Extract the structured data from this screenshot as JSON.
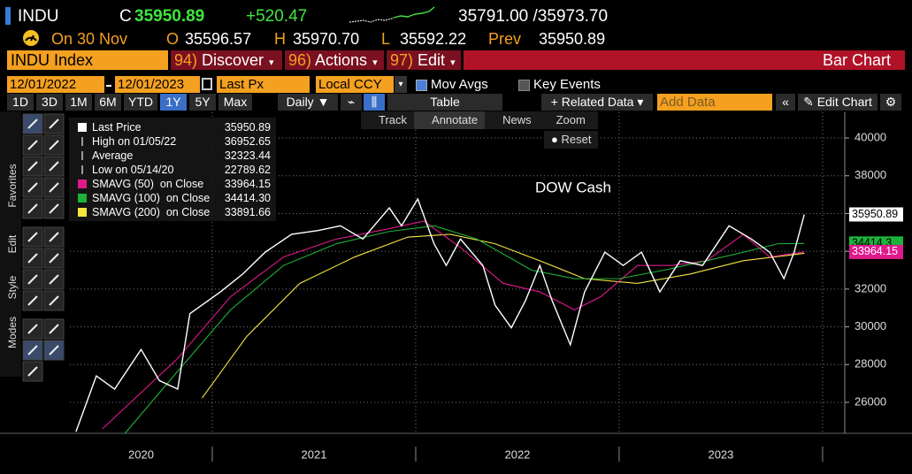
{
  "header": {
    "ticker": "INDU",
    "close_label": "C",
    "close": "35950.89",
    "change": "+520.47",
    "bid_ask": "35791.00 /35973.70",
    "date": "On 30 Nov",
    "open_label": "O",
    "open": "35596.57",
    "high_label": "H",
    "high": "35970.70",
    "low_label": "L",
    "low": "35592.22",
    "prev_label": "Prev",
    "prev": "35950.89"
  },
  "menu": {
    "security": "INDU Index",
    "items": [
      {
        "key": "94)",
        "label": "Discover"
      },
      {
        "key": "96)",
        "label": "Actions"
      },
      {
        "key": "97)",
        "label": "Edit"
      }
    ],
    "view": "Bar Chart"
  },
  "controls": {
    "start": "12/01/2022",
    "end": "12/01/2023",
    "field": "Last Px",
    "currency": "Local CCY",
    "mov_avgs": "Mov Avgs",
    "key_events": "Key Events"
  },
  "toolbar": {
    "periods": [
      "1D",
      "3D",
      "1M",
      "6M",
      "YTD",
      "1Y",
      "5Y",
      "Max"
    ],
    "selected_period": "1Y",
    "frequency": "Daily",
    "table": "Table",
    "related": "Related Data",
    "add_data": "Add Data",
    "edit_chart": "Edit Chart"
  },
  "tools": [
    "Track",
    "Annotate",
    "News",
    "Zoom",
    "Reset"
  ],
  "side_tabs": [
    "Favorites",
    "Edit",
    "Style",
    "Modes"
  ],
  "legend": [
    {
      "label": "Last Price",
      "value": "35950.89",
      "color": "#ffffff"
    },
    {
      "label": "High on 01/05/22",
      "value": "36952.65"
    },
    {
      "label": "Average",
      "value": "32323.44"
    },
    {
      "label": "Low on 05/14/20",
      "value": "22789.62"
    },
    {
      "label": "SMAVG (50)  on Close",
      "value": "33964.15",
      "color": "#e0198c"
    },
    {
      "label": "SMAVG (100)  on Close",
      "value": "34414.30",
      "color": "#1db33a"
    },
    {
      "label": "SMAVG (200)  on Close",
      "value": "33891.66",
      "color": "#f5e642"
    }
  ],
  "chart_data": {
    "type": "line",
    "annotation": "DOW Cash",
    "xlim": [
      2020.3,
      2024.109
    ],
    "ylim": [
      24360,
      41360
    ],
    "yticks": [
      26000,
      28000,
      30000,
      32000,
      34000,
      36000,
      38000,
      40000
    ],
    "xticks": [
      {
        "value": 2020.65,
        "label": "2020"
      },
      {
        "value": 2021.5,
        "label": "2021"
      },
      {
        "value": 2022.5,
        "label": "2022"
      },
      {
        "value": 2023.5,
        "label": "2023"
      }
    ],
    "separators": [
      2021,
      2022,
      2023,
      2024
    ],
    "grid": true,
    "series": [
      {
        "name": "Last Price",
        "color": "#ffffff",
        "x": [
          2020.33,
          2020.43,
          2020.52,
          2020.65,
          2020.74,
          2020.83,
          2020.89,
          2021.04,
          2021.15,
          2021.26,
          2021.39,
          2021.52,
          2021.63,
          2021.74,
          2021.87,
          2021.93,
          2022.01,
          2022.09,
          2022.15,
          2022.22,
          2022.33,
          2022.39,
          2022.47,
          2022.54,
          2022.61,
          2022.67,
          2022.76,
          2022.83,
          2022.93,
          2023.02,
          2023.11,
          2023.2,
          2023.3,
          2023.41,
          2023.54,
          2023.65,
          2023.74,
          2023.81,
          2023.86,
          2023.91
        ],
        "values": [
          24450,
          27400,
          26700,
          28800,
          27150,
          26700,
          30700,
          31850,
          32800,
          33950,
          34900,
          35100,
          35350,
          34650,
          36300,
          35350,
          36770,
          34400,
          33250,
          34650,
          33250,
          31150,
          29950,
          31400,
          33250,
          31400,
          29050,
          31850,
          33950,
          33250,
          33950,
          31850,
          33500,
          33250,
          35350,
          34650,
          33950,
          32550,
          33950,
          35950.89
        ]
      },
      {
        "name": "SMAVG (100)",
        "color": "#1db33a",
        "x": [
          2020.57,
          2020.83,
          2021.09,
          2021.35,
          2021.61,
          2021.87,
          2022.09,
          2022.3,
          2022.57,
          2022.78,
          2023.0,
          2023.22,
          2023.43,
          2023.61,
          2023.78,
          2023.91
        ],
        "values": [
          24350,
          27650,
          30900,
          33250,
          34400,
          35050,
          35350,
          34650,
          33000,
          32550,
          32550,
          33000,
          33500,
          33950,
          34400,
          34414.3
        ]
      },
      {
        "name": "SMAVG (50)",
        "color": "#e0198c",
        "x": [
          2020.46,
          2020.83,
          2021.09,
          2021.35,
          2021.61,
          2021.87,
          2022.04,
          2022.22,
          2022.43,
          2022.61,
          2022.78,
          2022.91,
          2023.09,
          2023.26,
          2023.43,
          2023.61,
          2023.74,
          2023.91
        ],
        "values": [
          24600,
          28330,
          31600,
          33700,
          34650,
          35200,
          35600,
          34200,
          32300,
          31850,
          30900,
          31600,
          33250,
          33250,
          33500,
          34900,
          33700,
          33964.15
        ]
      },
      {
        "name": "SMAVG (200)",
        "color": "#f5e642",
        "x": [
          2020.95,
          2021.17,
          2021.43,
          2021.7,
          2021.96,
          2022.17,
          2022.39,
          2022.61,
          2022.83,
          2023.09,
          2023.35,
          2023.61,
          2023.91
        ],
        "values": [
          26230,
          29500,
          32300,
          33700,
          34750,
          34900,
          34400,
          33500,
          32550,
          32300,
          32800,
          33500,
          33891.66
        ]
      }
    ]
  }
}
